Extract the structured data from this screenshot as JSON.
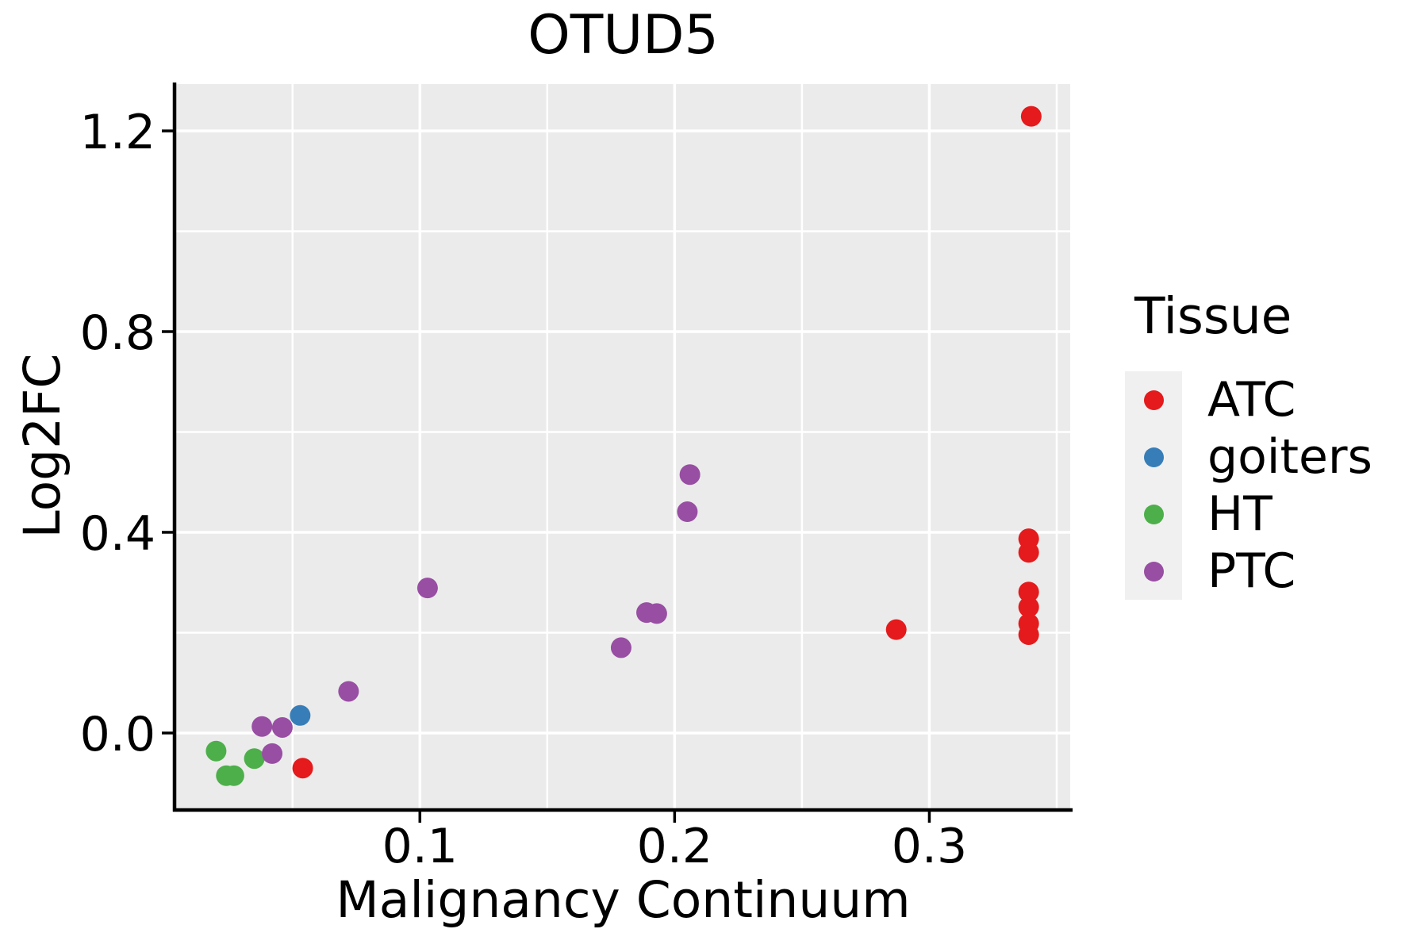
{
  "chart_data": {
    "type": "scatter",
    "title": "OTUD5",
    "xlabel": "Malignancy Continuum",
    "ylabel": "Log2FC",
    "legend_title": "Tissue",
    "legend_position": "right",
    "grid": true,
    "panel_background": "#EBEBEB",
    "gridline_color": "#FFFFFF",
    "axis_color": "#000000",
    "xlim": [
      0.0043,
      0.3553
    ],
    "ylim": [
      -0.1503,
      1.2933
    ],
    "x_major_ticks": [
      0.1,
      0.2,
      0.3
    ],
    "x_tick_labels": [
      "0.1",
      "0.2",
      "0.3"
    ],
    "x_minor_ticks": [
      0.05,
      0.15,
      0.25,
      0.35
    ],
    "y_major_ticks": [
      0.0,
      0.4,
      0.8,
      1.2
    ],
    "y_tick_labels": [
      "0.0",
      "0.4",
      "0.8",
      "1.2"
    ],
    "y_minor_ticks": [
      0.2,
      0.6,
      1.0
    ],
    "series": [
      {
        "name": "ATC",
        "color": "#E41A1C",
        "points": [
          [
            0.054,
            -0.07
          ],
          [
            0.287,
            0.206
          ],
          [
            0.339,
            0.196
          ],
          [
            0.339,
            0.218
          ],
          [
            0.339,
            0.251
          ],
          [
            0.339,
            0.281
          ],
          [
            0.339,
            0.36
          ],
          [
            0.339,
            0.387
          ],
          [
            0.34,
            1.229
          ]
        ]
      },
      {
        "name": "goiters",
        "color": "#377EB8",
        "points": [
          [
            0.053,
            0.035
          ]
        ]
      },
      {
        "name": "HT",
        "color": "#4DAF4A",
        "points": [
          [
            0.02,
            -0.036
          ],
          [
            0.024,
            -0.085
          ],
          [
            0.027,
            -0.085
          ],
          [
            0.035,
            -0.051
          ]
        ]
      },
      {
        "name": "PTC",
        "color": "#984EA3",
        "points": [
          [
            0.038,
            0.013
          ],
          [
            0.042,
            -0.041
          ],
          [
            0.046,
            0.011
          ],
          [
            0.072,
            0.083
          ],
          [
            0.103,
            0.289
          ],
          [
            0.179,
            0.17
          ],
          [
            0.189,
            0.24
          ],
          [
            0.193,
            0.238
          ],
          [
            0.205,
            0.441
          ],
          [
            0.206,
            0.515
          ]
        ]
      }
    ]
  }
}
